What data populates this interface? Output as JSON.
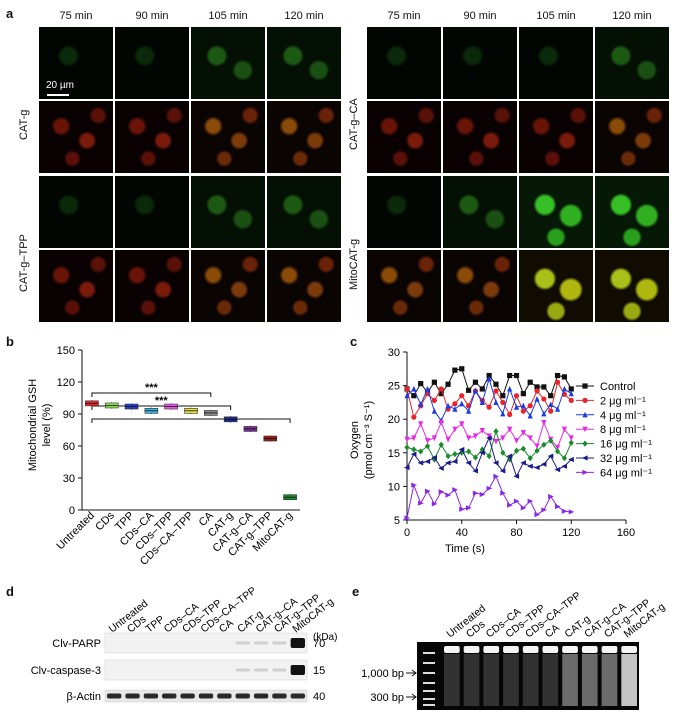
{
  "panel_a": {
    "label": "a",
    "times": [
      "75 min",
      "90 min",
      "105 min",
      "120 min"
    ],
    "scale_bar": "20 µm",
    "left_rows": [
      "CAT-g",
      "CAT-g–TPP"
    ],
    "right_rows": [
      "CAT-g–CA",
      "MitoCAT-g"
    ]
  },
  "panel_b": {
    "label": "b",
    "ylabel_line1": "Mitochondrial GSH",
    "ylabel_line2": "level (%)",
    "yticks": [
      "0",
      "30",
      "60",
      "90",
      "120",
      "150"
    ],
    "significance": [
      "***",
      "***",
      "***"
    ],
    "chart_data": {
      "type": "box",
      "categories": [
        "Untreated",
        "CDs",
        "TPP",
        "CDs–CA",
        "CDs–TPP",
        "CDs–CA–TPP",
        "CA",
        "CAT-g",
        "CAT-g–CA",
        "CAT-g–TPP",
        "MitoCAT-g"
      ],
      "values": [
        100,
        98,
        97,
        93,
        97,
        93,
        91,
        85,
        76,
        67,
        12
      ],
      "colors": [
        "#e8242a",
        "#8ee04a",
        "#2a3ac8",
        "#38b6e8",
        "#e858e8",
        "#e8e03a",
        "#8a8a8a",
        "#1a2a8a",
        "#7a2a9a",
        "#9a1a1a",
        "#1a8a2a"
      ],
      "ylim": [
        0,
        150
      ]
    }
  },
  "panel_c": {
    "label": "c",
    "ylabel_line1": "Oxygen",
    "ylabel_line2": "(pmol cm⁻³ S⁻¹)",
    "xlabel": "Time (s)",
    "xticks": [
      "0",
      "40",
      "80",
      "120",
      "160"
    ],
    "yticks": [
      "5",
      "10",
      "15",
      "20",
      "25",
      "30"
    ],
    "chart_data": {
      "type": "line",
      "xlim": [
        0,
        160
      ],
      "ylim": [
        5,
        30
      ],
      "x": [
        0,
        5,
        10,
        15,
        20,
        25,
        30,
        35,
        40,
        45,
        50,
        55,
        60,
        65,
        70,
        75,
        80,
        85,
        90,
        95,
        100,
        105,
        110,
        115,
        120
      ],
      "series": [
        {
          "name": "Control",
          "color": "#111111",
          "marker": "square",
          "values": [
            24.5,
            23.5,
            25.3,
            24,
            25.5,
            23.8,
            25.2,
            27.3,
            27.5,
            24.3,
            25.5,
            24.5,
            26.5,
            25.2,
            23.5,
            26.5,
            26.5,
            23.8,
            25.5,
            24.8,
            24.8,
            23.5,
            26.5,
            26.3,
            24.5
          ]
        },
        {
          "name": "2 μg ml⁻¹",
          "color": "#e8242a",
          "marker": "circle",
          "values": [
            24.5,
            20.3,
            22,
            23.8,
            22.8,
            24.5,
            21.5,
            22.3,
            23.5,
            22,
            24.2,
            22.8,
            21.8,
            24.2,
            22.5,
            20.7,
            23.5,
            21.2,
            22,
            24.2,
            23,
            21.2,
            25.5,
            23.7,
            22.8
          ]
        },
        {
          "name": "4 μg ml⁻¹",
          "color": "#1a3ae8",
          "marker": "triangle",
          "values": [
            23.5,
            24.5,
            22.2,
            24.5,
            21.2,
            19.8,
            22,
            21.5,
            22.3,
            21.2,
            24.2,
            22.5,
            26,
            22.5,
            20.8,
            24.5,
            21.8,
            22,
            20.5,
            23,
            20.8,
            22.2,
            21.5,
            24.5,
            23.8
          ]
        },
        {
          "name": "8 μg ml⁻¹",
          "color": "#e828e8",
          "marker": "down-triangle",
          "values": [
            17,
            17.2,
            19.3,
            16.8,
            17.2,
            19.5,
            17,
            18.5,
            19.3,
            17.2,
            17.5,
            18.3,
            17.5,
            16.7,
            17.2,
            18.5,
            16.8,
            18,
            17.2,
            16,
            19.5,
            17,
            15.8,
            18.5,
            17.2
          ]
        },
        {
          "name": "16 μg ml⁻¹",
          "color": "#1a8a2a",
          "marker": "diamond",
          "values": [
            15.8,
            15.5,
            15.2,
            16,
            14,
            16.2,
            14.5,
            14.8,
            15,
            15.2,
            14.3,
            15.5,
            14.5,
            18.2,
            15,
            14,
            15.3,
            15.6,
            14.2,
            15.3,
            16.2,
            16.8,
            15.2,
            14.2,
            16.5
          ]
        },
        {
          "name": "32 μg ml⁻¹",
          "color": "#1a1a8a",
          "marker": "left-triangle",
          "values": [
            12.8,
            14.8,
            13.5,
            13.7,
            14.3,
            12.7,
            13.5,
            13.7,
            15.5,
            13.5,
            12.3,
            15,
            17.2,
            13.5,
            12.3,
            14.5,
            11.5,
            13.5,
            13,
            12.8,
            13.3,
            14.5,
            12.5,
            13,
            14
          ]
        },
        {
          "name": "64 μg ml⁻¹",
          "color": "#8a28e8",
          "marker": "right-triangle",
          "values": [
            5.3,
            10.2,
            7.5,
            9.3,
            7.4,
            9.2,
            8.7,
            9.5,
            6.6,
            6.8,
            9,
            8.8,
            9.7,
            11.5,
            9,
            7.2,
            7.8,
            6.8,
            7.8,
            5.8,
            6.5,
            8.5,
            7,
            6.3,
            6.2
          ]
        }
      ]
    }
  },
  "panel_d": {
    "label": "d",
    "lanes": [
      "Untreated",
      "CDs",
      "TPP",
      "CDs–CA",
      "CDs–TPP",
      "CDs–CA–TPP",
      "CA",
      "CAT-g",
      "CAT-g–CA",
      "CAT-g–TPP",
      "MitoCAT-g"
    ],
    "rows": [
      "Clv-PARP",
      "Clv-caspase-3",
      "β-Actin"
    ],
    "kda_label": "(kDa)",
    "kda": [
      "70",
      "15",
      "40"
    ]
  },
  "panel_e": {
    "label": "e",
    "lanes": [
      "Untreated",
      "CDs",
      "CDs–CA",
      "CDs–TPP",
      "CDs–CA–TPP",
      "CA",
      "CAT-g",
      "CAT-g–CA",
      "CAT-g–TPP",
      "MitoCAT-g"
    ],
    "markers": [
      "1,000 bp",
      "300 bp"
    ]
  }
}
